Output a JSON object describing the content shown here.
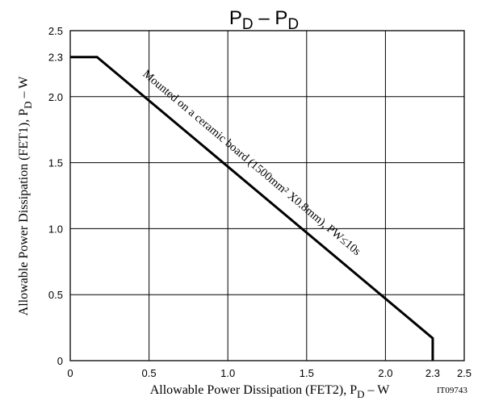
{
  "chart_data": {
    "type": "line",
    "title": "P",
    "title_sub": "D",
    "title_sep": " – ",
    "xlabel": "Allowable Power Dissipation (FET2), P",
    "xlabel_sub": "D",
    "xlabel_unit": " – W",
    "ylabel": "Allowable Power Dissipation (FET1), P",
    "ylabel_sub": "D",
    "ylabel_unit": " – W",
    "figure_id": "IT09743",
    "xlim": [
      0,
      2.5
    ],
    "ylim": [
      0,
      2.5
    ],
    "xticks": [
      0,
      0.5,
      1.0,
      1.5,
      2.0,
      2.3,
      2.5
    ],
    "xtick_labels": [
      "0",
      "0.5",
      "1.0",
      "1.5",
      "2.0",
      "2.3",
      "2.5"
    ],
    "yticks": [
      0,
      0.5,
      1.0,
      1.5,
      2.0,
      2.3,
      2.5
    ],
    "ytick_labels": [
      "0",
      "0.5",
      "1.0",
      "1.5",
      "2.0",
      "2.3",
      "2.5"
    ],
    "grid": true,
    "series": [
      {
        "x": [
          0,
          0.17,
          2.3,
          2.3
        ],
        "y": [
          2.3,
          2.3,
          0.17,
          0
        ],
        "color": "#000000"
      }
    ],
    "annotation": "Mounted on a ceramic board (1500mm² X0.8mm), PW≤10s"
  }
}
